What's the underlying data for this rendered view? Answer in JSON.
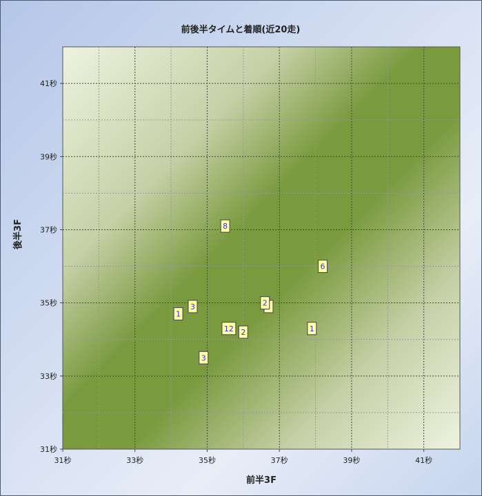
{
  "chart_data": {
    "type": "scatter",
    "title": "前後半タイムと着順(近20走)",
    "xlabel": "前半3F",
    "ylabel": "後半3F",
    "xlim": [
      31,
      42
    ],
    "ylim": [
      31,
      42
    ],
    "x_ticks": [
      "31秒",
      "33秒",
      "35秒",
      "37秒",
      "39秒",
      "41秒"
    ],
    "y_ticks": [
      "31秒",
      "33秒",
      "35秒",
      "37秒",
      "39秒",
      "41秒"
    ],
    "x_tick_values": [
      31,
      33,
      35,
      37,
      39,
      41
    ],
    "y_tick_values": [
      31,
      33,
      35,
      37,
      39,
      41
    ],
    "grid": true,
    "points": [
      {
        "x": 35.5,
        "y": 37.1,
        "label": "8"
      },
      {
        "x": 38.2,
        "y": 36.0,
        "label": "6"
      },
      {
        "x": 36.7,
        "y": 34.9,
        "label": ""
      },
      {
        "x": 36.6,
        "y": 35.0,
        "label": "2"
      },
      {
        "x": 34.6,
        "y": 34.9,
        "label": "3"
      },
      {
        "x": 34.2,
        "y": 34.7,
        "label": "1"
      },
      {
        "x": 35.6,
        "y": 34.3,
        "label": "12"
      },
      {
        "x": 36.0,
        "y": 34.2,
        "label": "2"
      },
      {
        "x": 37.9,
        "y": 34.3,
        "label": "1"
      },
      {
        "x": 34.9,
        "y": 33.5,
        "label": "3"
      }
    ],
    "colors": {
      "plot_green": "#7a9a3e",
      "plot_light": "#eef3e0",
      "marker_fill": "#ffffa8",
      "label_color": "#3333cc"
    }
  }
}
